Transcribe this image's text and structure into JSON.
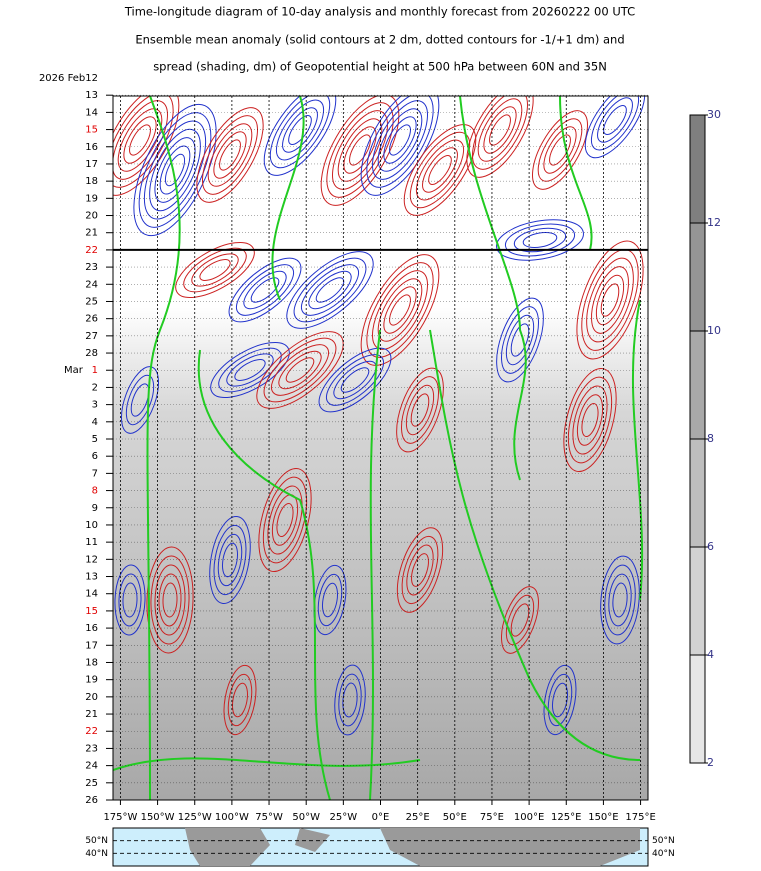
{
  "chart_data": {
    "type": "hovmoller",
    "title": "Time-longitude diagram of 10-day analysis and monthly forecast from 20260222 00 UTC",
    "subtitle": "Ensemble mean anomaly (solid contours at 2 dm, dotted contours for -1/+1 dm) and",
    "subtitle2": "spread (shading, dm) of Geopotential height at 500 hPa between 60N and 35N",
    "y_categories": [
      "2026 Feb12",
      "13",
      "14",
      "15",
      "16",
      "17",
      "18",
      "19",
      "20",
      "21",
      "22",
      "23",
      "24",
      "25",
      "26",
      "27",
      "28",
      "1",
      "2",
      "3",
      "4",
      "5",
      "6",
      "7",
      "8",
      "9",
      "10",
      "11",
      "12",
      "13",
      "14",
      "15",
      "16",
      "17",
      "18",
      "19",
      "20",
      "21",
      "22",
      "23",
      "24",
      "25",
      "26"
    ],
    "month_label": "Mar",
    "highlight_categories": [
      3,
      10,
      17,
      24,
      31,
      38
    ],
    "highlight_color": "#e00000",
    "analysis_end_category": 10,
    "xlim": [
      -180,
      180
    ],
    "xticks": [
      {
        "value": -175,
        "label": "175°W"
      },
      {
        "value": -150,
        "label": "150°W"
      },
      {
        "value": -125,
        "label": "125°W"
      },
      {
        "value": -100,
        "label": "100°W"
      },
      {
        "value": -75,
        "label": "75°W"
      },
      {
        "value": -50,
        "label": "50°W"
      },
      {
        "value": -25,
        "label": "25°W"
      },
      {
        "value": 0,
        "label": "0°E"
      },
      {
        "value": 25,
        "label": "25°E"
      },
      {
        "value": 50,
        "label": "50°E"
      },
      {
        "value": 75,
        "label": "75°E"
      },
      {
        "value": 100,
        "label": "100°E"
      },
      {
        "value": 125,
        "label": "125°E"
      },
      {
        "value": 150,
        "label": "150°E"
      },
      {
        "value": 175,
        "label": "175°E"
      }
    ],
    "colorbar": {
      "levels": [
        2,
        4,
        6,
        8,
        10,
        12,
        30
      ],
      "colors": [
        "#e6e6e6",
        "#d2d2d2",
        "#bebebe",
        "#a9a9a9",
        "#959595",
        "#7f7f7f"
      ],
      "label_color": "#333388"
    },
    "map_latitudes": [
      {
        "value": 50,
        "label": "50°N"
      },
      {
        "value": 40,
        "label": "40°N"
      }
    ]
  }
}
